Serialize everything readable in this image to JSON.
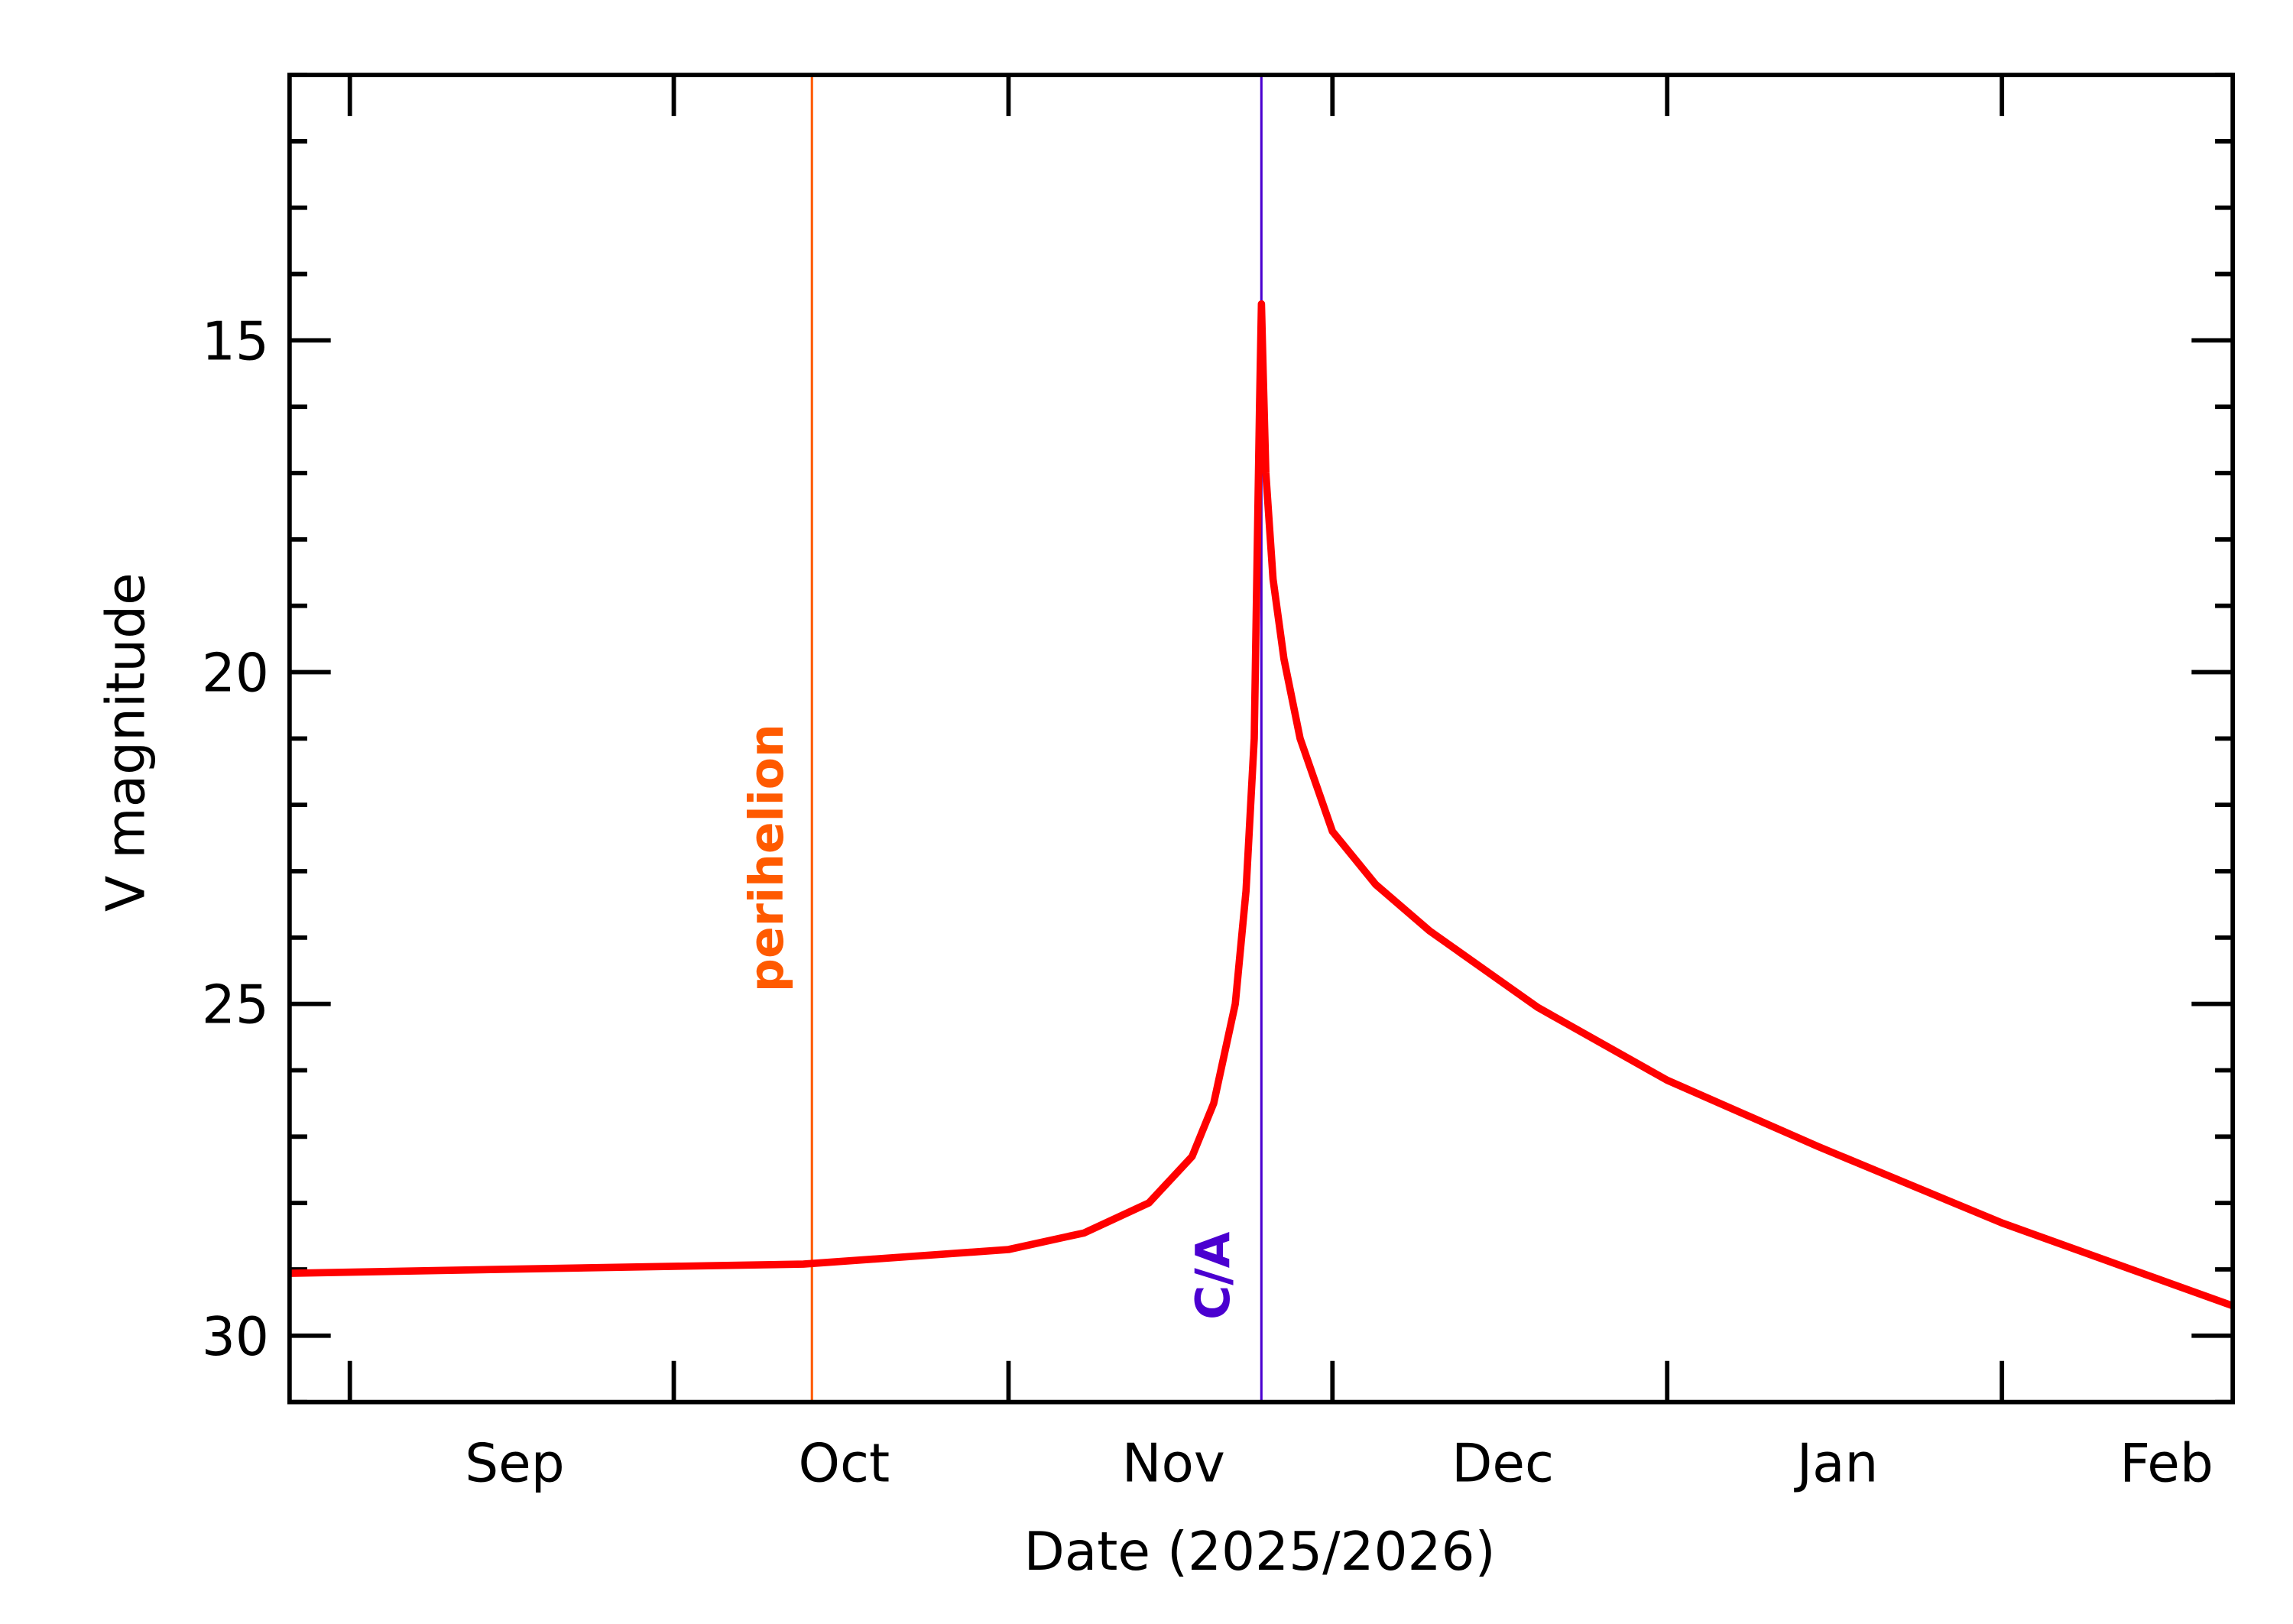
{
  "chart_data": {
    "type": "line",
    "title": "",
    "xlabel": "Date (2025/2026)",
    "ylabel": "V magnitude",
    "xlim": [
      "2025-08-26T10:00",
      "2026-02-22T09:00"
    ],
    "ylim": [
      31,
      11
    ],
    "y_reversed": true,
    "y_major_ticks": [
      15,
      20,
      25,
      30
    ],
    "y_minor_step": 1,
    "x_ticks": [
      {
        "date": "2025-09-01",
        "label": "Sep"
      },
      {
        "date": "2025-10-01",
        "label": "Oct"
      },
      {
        "date": "2025-11-01",
        "label": "Nov"
      },
      {
        "date": "2025-12-01",
        "label": "Dec"
      },
      {
        "date": "2026-01-01",
        "label": "Jan"
      },
      {
        "date": "2026-02-01",
        "label": "Feb"
      }
    ],
    "grid": false,
    "series": [
      {
        "color": "#ff0000",
        "points": [
          [
            "2025-08-26T10:00",
            29.06
          ],
          [
            "2025-09-15T00:00",
            29.0
          ],
          [
            "2025-10-13T00:00",
            28.92
          ],
          [
            "2025-11-01T00:00",
            28.7
          ],
          [
            "2025-11-08T00:00",
            28.45
          ],
          [
            "2025-11-14T00:00",
            28.0
          ],
          [
            "2025-11-18T00:00",
            27.3
          ],
          [
            "2025-11-20T00:00",
            26.5
          ],
          [
            "2025-11-22T00:00",
            25.0
          ],
          [
            "2025-11-23T00:00",
            23.3
          ],
          [
            "2025-11-23T18:00",
            21.0
          ],
          [
            "2025-11-24T00:00",
            18.5
          ],
          [
            "2025-11-24T06:00",
            16.0
          ],
          [
            "2025-11-24T10:00",
            14.45
          ],
          [
            "2025-11-24T14:00",
            15.5
          ],
          [
            "2025-11-24T20:00",
            17.0
          ],
          [
            "2025-11-25T12:00",
            18.6
          ],
          [
            "2025-11-26T12:00",
            19.8
          ],
          [
            "2025-11-28T00:00",
            21.0
          ],
          [
            "2025-12-01T00:00",
            22.4
          ],
          [
            "2025-12-05T00:00",
            23.2
          ],
          [
            "2025-12-10T00:00",
            23.9
          ],
          [
            "2025-12-20T00:00",
            25.05
          ],
          [
            "2026-01-01T00:00",
            26.15
          ],
          [
            "2026-01-15T00:00",
            27.15
          ],
          [
            "2026-02-01T00:00",
            28.3
          ],
          [
            "2026-02-22T09:00",
            29.55
          ]
        ]
      }
    ],
    "markers": [
      {
        "label": "perihelion",
        "date": "2025-10-13T19:00",
        "color": "#ff5a00"
      },
      {
        "label": "C/A",
        "date": "2025-11-24T10:00",
        "color": "#4b00d0"
      }
    ]
  }
}
